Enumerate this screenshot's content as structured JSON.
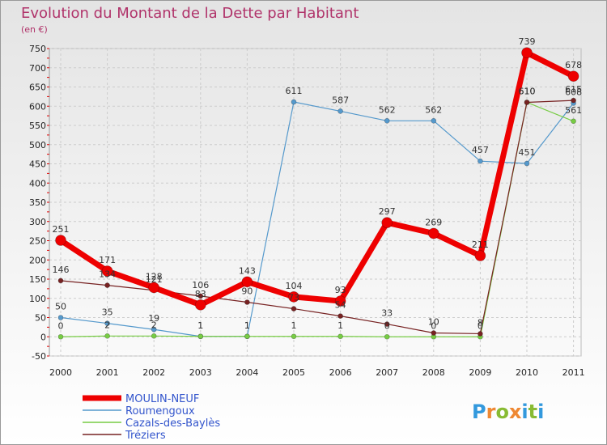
{
  "chart_data": {
    "type": "line",
    "title": "Evolution du Montant de la Dette par Habitant",
    "subtitle": "(en €)",
    "xlabel": "",
    "ylabel": "",
    "ylim": [
      -50,
      750
    ],
    "yticks": [
      -50,
      0,
      50,
      100,
      150,
      200,
      250,
      300,
      350,
      400,
      450,
      500,
      550,
      600,
      650,
      700,
      750
    ],
    "categories": [
      "2000",
      "2001",
      "2002",
      "2003",
      "2004",
      "2005",
      "2006",
      "2007",
      "2008",
      "2009",
      "2010",
      "2011"
    ],
    "series": [
      {
        "name": "MOULIN-NEUF",
        "color": "#ee0000",
        "values": [
          251,
          171,
          128,
          83,
          143,
          104,
          93,
          297,
          269,
          211,
          739,
          678
        ],
        "labels": [
          "251",
          "171",
          "128",
          "83",
          "143",
          "104",
          "93",
          "297",
          "269",
          "211",
          "739",
          "678"
        ]
      },
      {
        "name": "Roumengoux",
        "color": "#5599cc",
        "values": [
          50,
          35,
          19,
          1,
          1,
          611,
          587,
          562,
          562,
          457,
          451,
          608
        ],
        "labels": [
          "50",
          "35",
          "19",
          "1",
          "1",
          "611",
          "587",
          "562",
          "562",
          "457",
          "451",
          "608"
        ]
      },
      {
        "name": "Cazals-des-Baylès",
        "color": "#77cc44",
        "values": [
          0,
          2,
          2,
          1,
          1,
          1,
          1,
          0,
          0,
          0,
          610,
          561
        ],
        "labels": [
          "0",
          "2",
          "2",
          "1",
          "1",
          "1",
          "1",
          "0",
          "0",
          "0",
          "610",
          "561"
        ]
      },
      {
        "name": "Tréziers",
        "color": "#772222",
        "values": [
          146,
          134,
          121,
          106,
          90,
          73,
          54,
          33,
          10,
          8,
          610,
          615
        ],
        "labels": [
          "146",
          "134",
          "121",
          "106",
          "90",
          "73",
          "54",
          "33",
          "10",
          "8",
          "610",
          "615"
        ]
      }
    ],
    "legend_position": "bottom-left",
    "grid": true
  },
  "brand": {
    "letters": [
      "P",
      "r",
      "o",
      "x",
      "i",
      "t",
      "i"
    ],
    "colors": [
      "#3399dd",
      "#ee8833",
      "#88bb33",
      "#ee8833",
      "#3399dd",
      "#88bb33",
      "#3399dd"
    ]
  }
}
